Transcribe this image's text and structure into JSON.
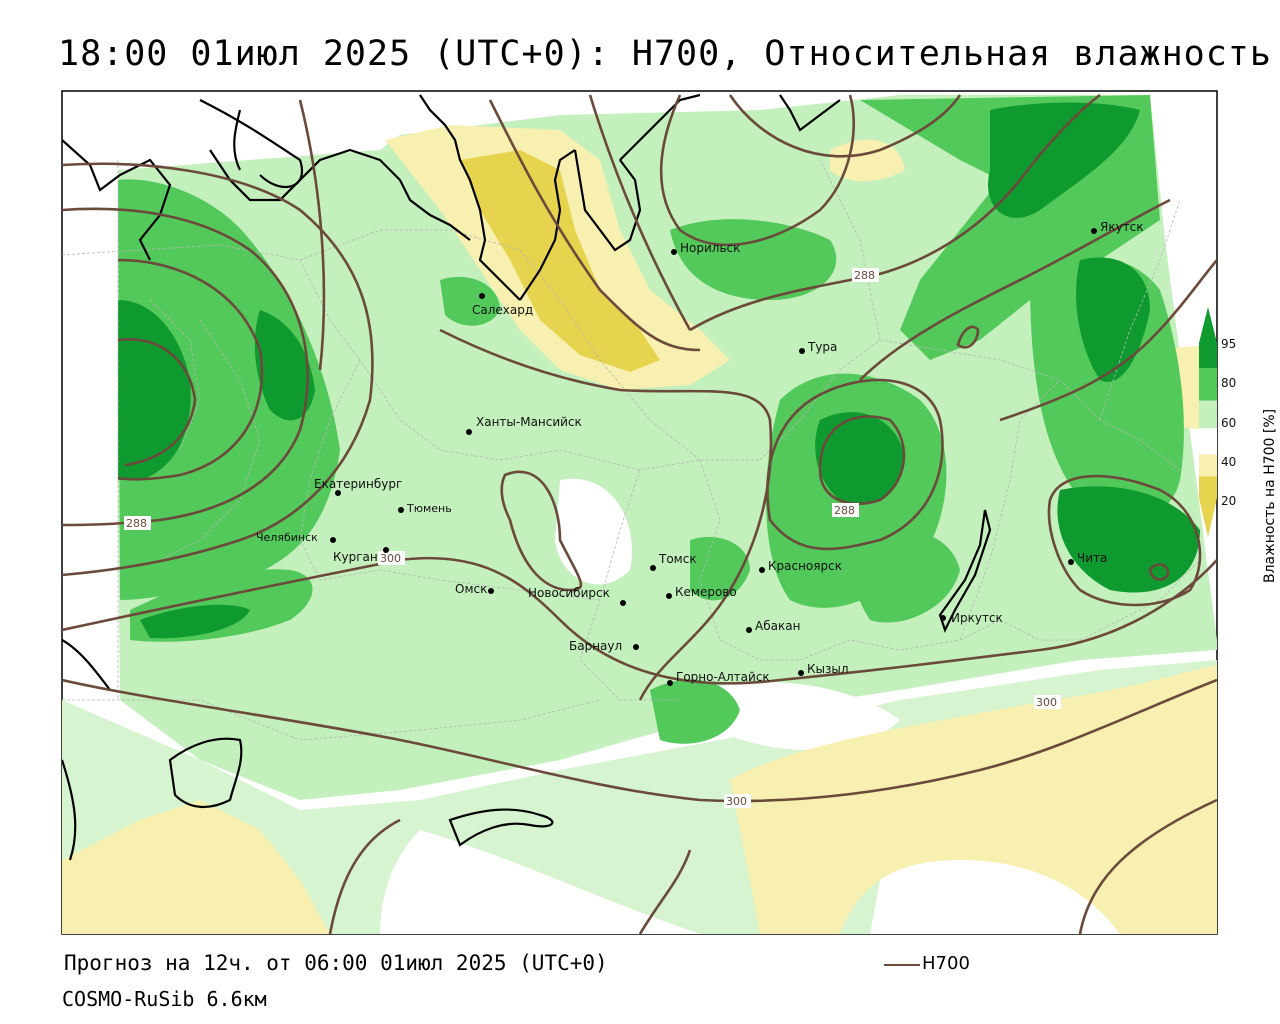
{
  "title": "18:00 01июл 2025 (UTC+0): H700, Относительная влажность",
  "footer": {
    "forecast": "Прогноз на 12ч. от 06:00 01июл 2025 (UTC+0)",
    "model": "COSMO-RuSib 6.6км",
    "legend_label": "H700"
  },
  "colorbar": {
    "title": "Влажность на H700 [%]",
    "ticks": [
      "95",
      "80",
      "60",
      "40",
      "20"
    ],
    "colors": {
      "very_humid": "#0f9a2f",
      "humid": "#52c95a",
      "moist": "#c4f0bd",
      "neutral": "#ffffff",
      "dry": "#f7f0b0",
      "very_dry": "#e6d44e"
    }
  },
  "contour_labels": [
    "288",
    "288",
    "288",
    "300",
    "300",
    "300"
  ],
  "cities": [
    {
      "name": "Салехард"
    },
    {
      "name": "Норильск"
    },
    {
      "name": "Якутск"
    },
    {
      "name": "Тура"
    },
    {
      "name": "Ханты-Мансийск"
    },
    {
      "name": "Екатеринбург"
    },
    {
      "name": "Тюмень"
    },
    {
      "name": "Челябинск"
    },
    {
      "name": "Курган"
    },
    {
      "name": "Омск"
    },
    {
      "name": "Новосибирск"
    },
    {
      "name": "Томск"
    },
    {
      "name": "Кемерово"
    },
    {
      "name": "Красноярск"
    },
    {
      "name": "Абакан"
    },
    {
      "name": "Барнаул"
    },
    {
      "name": "Горно-Алтайск"
    },
    {
      "name": "Кызыл"
    },
    {
      "name": "Иркутск"
    },
    {
      "name": "Чита"
    }
  ]
}
